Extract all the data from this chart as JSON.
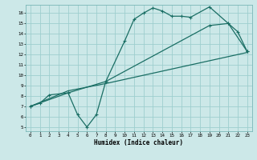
{
  "xlabel": "Humidex (Indice chaleur)",
  "background_color": "#cce8e8",
  "grid_color": "#9ecece",
  "line_color": "#1a6e64",
  "xlim": [
    -0.5,
    23.5
  ],
  "ylim": [
    4.6,
    16.8
  ],
  "xticks": [
    0,
    1,
    2,
    3,
    4,
    5,
    6,
    7,
    8,
    9,
    10,
    11,
    12,
    13,
    14,
    15,
    16,
    17,
    18,
    19,
    20,
    21,
    22,
    23
  ],
  "yticks": [
    5,
    6,
    7,
    8,
    9,
    10,
    11,
    12,
    13,
    14,
    15,
    16
  ],
  "curve1_x": [
    0,
    1,
    2,
    4,
    5,
    6,
    7,
    8,
    10,
    11,
    12,
    13,
    14,
    15,
    16,
    17,
    19,
    21,
    22,
    23
  ],
  "curve1_y": [
    7.0,
    7.3,
    8.1,
    8.3,
    6.2,
    5.0,
    6.2,
    9.4,
    13.3,
    15.4,
    16.0,
    16.5,
    16.2,
    15.7,
    15.7,
    15.6,
    16.6,
    15.0,
    14.2,
    12.3
  ],
  "curve2_x": [
    0,
    4,
    8,
    19,
    21,
    23
  ],
  "curve2_y": [
    7.0,
    8.3,
    9.4,
    14.8,
    15.0,
    12.3
  ],
  "curve3_x": [
    0,
    4,
    8,
    23
  ],
  "curve3_y": [
    7.0,
    8.5,
    9.2,
    12.2
  ]
}
